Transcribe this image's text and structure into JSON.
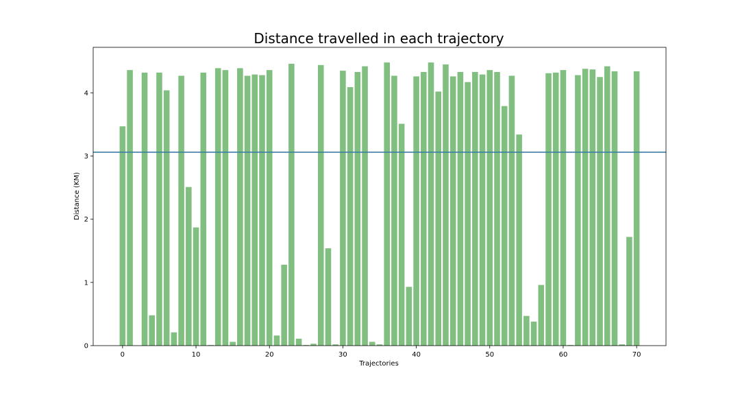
{
  "chart_data": {
    "type": "bar",
    "title": "Distance travelled in each trajectory",
    "xlabel": "Trajectories",
    "ylabel": "Distance (KM)",
    "x": [
      0,
      1,
      2,
      3,
      4,
      5,
      6,
      7,
      8,
      9,
      10,
      11,
      12,
      13,
      14,
      15,
      16,
      17,
      18,
      19,
      20,
      21,
      22,
      23,
      24,
      25,
      26,
      27,
      28,
      29,
      30,
      31,
      32,
      33,
      34,
      35,
      36,
      37,
      38,
      39,
      40,
      41,
      42,
      43,
      44,
      45,
      46,
      47,
      48,
      49,
      50,
      51,
      52,
      53,
      54,
      55,
      56,
      57,
      58,
      59,
      60,
      61,
      62,
      63,
      64,
      65,
      66,
      67,
      68,
      69,
      70
    ],
    "values": [
      3.47,
      4.36,
      0,
      4.32,
      0.48,
      4.32,
      4.04,
      0.21,
      4.27,
      2.51,
      1.87,
      4.32,
      0.01,
      4.39,
      4.36,
      0.06,
      4.39,
      4.27,
      4.29,
      4.28,
      4.36,
      0.16,
      1.28,
      4.46,
      0.11,
      0.01,
      0.03,
      4.44,
      1.54,
      0.02,
      4.35,
      4.09,
      4.33,
      4.42,
      0.06,
      0.02,
      4.48,
      4.27,
      3.51,
      0.93,
      4.26,
      4.33,
      4.48,
      4.02,
      4.45,
      4.26,
      4.33,
      4.17,
      4.33,
      4.29,
      4.36,
      4.33,
      3.79,
      4.27,
      3.34,
      0.47,
      0.38,
      0.96,
      4.31,
      4.32,
      4.36,
      0.01,
      4.28,
      4.38,
      4.37,
      4.25,
      4.42,
      4.34,
      0.02,
      1.72,
      4.34
    ],
    "bar_color": "#81bf81",
    "mean_line": 3.06,
    "mean_line_color": "#3d7ea6",
    "xlim": [
      -4,
      74
    ],
    "ylim": [
      0,
      4.72
    ],
    "xticks": [
      0,
      10,
      20,
      30,
      40,
      50,
      60,
      70
    ],
    "yticks": [
      0,
      1,
      2,
      3,
      4
    ],
    "grid": false
  }
}
